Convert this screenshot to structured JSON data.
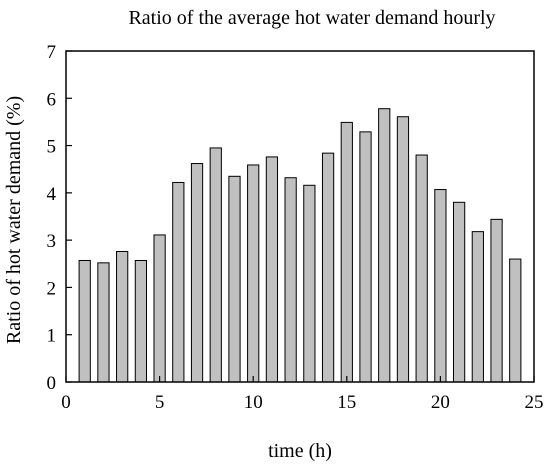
{
  "chart_data": {
    "type": "bar",
    "title": "Ratio of the average hot water demand hourly",
    "xlabel": "time (h)",
    "ylabel": "Ratio of hot water demand (%)",
    "x": [
      1,
      2,
      3,
      4,
      5,
      6,
      7,
      8,
      9,
      10,
      11,
      12,
      13,
      14,
      15,
      16,
      17,
      18,
      19,
      20,
      21,
      22,
      23,
      24
    ],
    "values": [
      2.57,
      2.52,
      2.76,
      2.57,
      3.11,
      4.22,
      4.62,
      4.95,
      4.35,
      4.59,
      4.76,
      4.32,
      4.16,
      4.84,
      5.49,
      5.29,
      5.78,
      5.61,
      4.8,
      4.07,
      3.8,
      3.18,
      3.44,
      2.6
    ],
    "xlim": [
      0,
      25
    ],
    "ylim": [
      0,
      7
    ],
    "xticks": [
      0,
      5,
      10,
      15,
      20,
      25
    ],
    "yticks": [
      0,
      1,
      2,
      3,
      4,
      5,
      6,
      7
    ],
    "grid": false,
    "bar_color": "#c0c0c0",
    "bar_edge_color": "#000000"
  }
}
